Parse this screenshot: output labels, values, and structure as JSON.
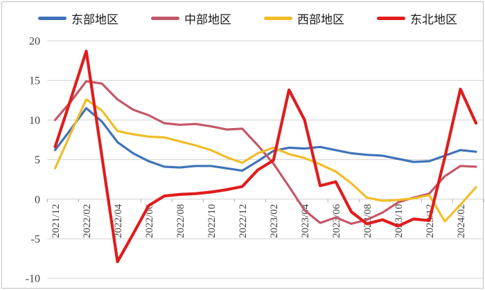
{
  "chart_data": {
    "type": "line",
    "title": "",
    "xlabel": "",
    "ylabel": "",
    "ylim": [
      -10,
      20
    ],
    "y_step": 5,
    "y_tick_labels": [
      "20",
      "15",
      "10",
      "5",
      "0",
      "-5",
      "-10"
    ],
    "grid": "horizontal",
    "legend_position": "top",
    "categories": [
      "2021/12",
      "2022/01",
      "2022/02",
      "2022/03",
      "2022/04",
      "2022/05",
      "2022/06",
      "2022/07",
      "2022/08",
      "2022/09",
      "2022/10",
      "2022/11",
      "2022/12",
      "2023/01",
      "2023/02",
      "2023/03",
      "2023/04",
      "2023/05",
      "2023/06",
      "2023/07",
      "2023/08",
      "2023/09",
      "2023/10",
      "2023/11",
      "2023/12",
      "2024/01",
      "2024/02",
      "2024/03"
    ],
    "x_tick_labels": [
      "2021/12",
      "2022/02",
      "2022/04",
      "2022/06",
      "2022/08",
      "2022/10",
      "2022/12",
      "2023/02",
      "2023/04",
      "2023/06",
      "2023/08",
      "2023/10",
      "2023/12",
      "2024/02"
    ],
    "series": [
      {
        "id": "east",
        "name": "东部地区",
        "color": "#3e72b8",
        "stroke_width": 3.2,
        "values": [
          6.2,
          8.8,
          11.5,
          9.8,
          7.2,
          5.8,
          4.8,
          4.1,
          4.0,
          4.2,
          4.2,
          3.9,
          3.6,
          4.8,
          6.1,
          6.5,
          6.4,
          6.6,
          6.2,
          5.8,
          5.6,
          5.5,
          5.1,
          4.7,
          4.8,
          5.5,
          6.2,
          6.0
        ]
      },
      {
        "id": "central",
        "name": "中部地区",
        "color": "#c25768",
        "stroke_width": 3.2,
        "values": [
          10.0,
          12.3,
          14.9,
          14.6,
          12.6,
          11.3,
          10.6,
          9.6,
          9.4,
          9.5,
          9.2,
          8.8,
          8.9,
          6.8,
          4.5,
          1.6,
          -1.4,
          -3.0,
          -2.3,
          -3.1,
          -2.6,
          -1.7,
          -0.4,
          0.2,
          0.7,
          2.9,
          4.2,
          4.1
        ]
      },
      {
        "id": "west",
        "name": "西部地区",
        "color": "#f2bc27",
        "stroke_width": 3.2,
        "values": [
          3.9,
          8.3,
          12.6,
          11.2,
          8.6,
          8.2,
          7.9,
          7.8,
          7.3,
          6.8,
          6.2,
          5.3,
          4.6,
          5.8,
          6.5,
          5.7,
          5.2,
          4.4,
          3.5,
          2.0,
          0.2,
          -0.2,
          -0.1,
          0.1,
          0.5,
          -2.8,
          -0.7,
          1.5
        ]
      },
      {
        "id": "northeast",
        "name": "东北地区",
        "color": "#e01c1c",
        "stroke_width": 4.2,
        "values": [
          6.6,
          12.6,
          18.7,
          5.4,
          -7.9,
          -4.4,
          -0.8,
          0.4,
          0.6,
          0.7,
          0.9,
          1.2,
          1.6,
          3.7,
          4.9,
          13.8,
          10.0,
          1.7,
          2.2,
          -1.6,
          -3.1,
          -2.6,
          -3.4,
          -2.5,
          -2.7,
          5.3,
          13.9,
          9.6
        ]
      }
    ]
  }
}
